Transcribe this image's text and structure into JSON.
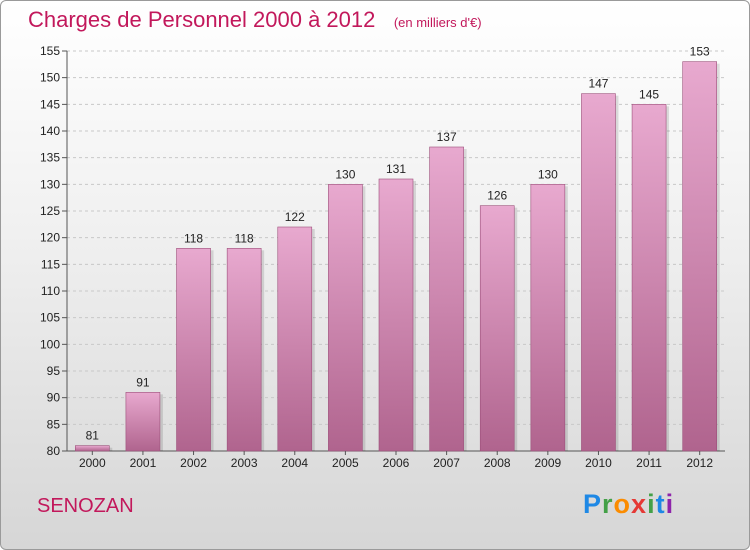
{
  "header": {
    "title": "Charges de Personnel 2000 à 2012",
    "subtitle": "(en milliers d'€)"
  },
  "footer": {
    "place": "SENOZAN",
    "logo_letters": [
      "P",
      "r",
      "o",
      "x",
      "i",
      "t",
      "i"
    ],
    "logo_colors": [
      "#1e88e5",
      "#43a047",
      "#fb8c00",
      "#e53935",
      "#43a047",
      "#1e88e5",
      "#8e24aa"
    ]
  },
  "colors": {
    "bar_top": "#e8a9cf",
    "bar_bottom": "#b0648e",
    "accent": "#c2185b"
  },
  "chart_data": {
    "type": "bar",
    "title": "Charges de Personnel 2000 à 2012",
    "subtitle": "(en milliers d'€)",
    "categories": [
      "2000",
      "2001",
      "2002",
      "2003",
      "2004",
      "2005",
      "2006",
      "2007",
      "2008",
      "2009",
      "2010",
      "2011",
      "2012"
    ],
    "values": [
      81,
      91,
      118,
      118,
      122,
      130,
      131,
      137,
      126,
      130,
      147,
      145,
      153
    ],
    "ylim": [
      80,
      155
    ],
    "yticks": [
      80,
      85,
      90,
      95,
      100,
      105,
      110,
      115,
      120,
      125,
      130,
      135,
      140,
      145,
      150,
      155
    ],
    "grid": true,
    "legend": "none"
  }
}
